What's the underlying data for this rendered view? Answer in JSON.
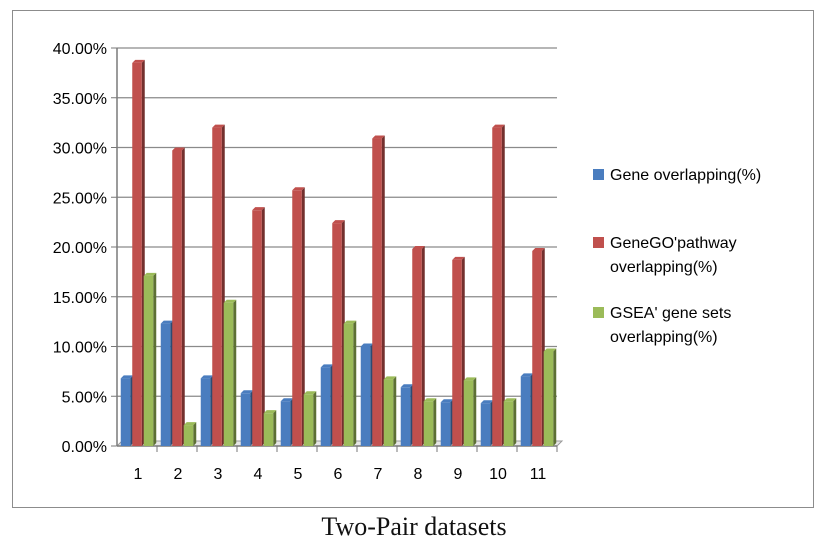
{
  "chart_data": {
    "type": "bar",
    "title": "",
    "xlabel": "Two-Pair datasets",
    "ylabel": "",
    "ylim": [
      0,
      40
    ],
    "yticks": [
      "0.00%",
      "5.00%",
      "10.00%",
      "15.00%",
      "20.00%",
      "25.00%",
      "30.00%",
      "35.00%",
      "40.00%"
    ],
    "categories": [
      "1",
      "2",
      "3",
      "4",
      "5",
      "6",
      "7",
      "8",
      "9",
      "10",
      "11"
    ],
    "series": [
      {
        "name": "Gene overlapping(%)",
        "color": "#4a7dbf",
        "values": [
          6.8,
          12.3,
          6.8,
          5.3,
          4.5,
          7.9,
          10.0,
          5.9,
          4.4,
          4.3,
          7.0
        ]
      },
      {
        "name": "GeneGO'pathway overlapping(%)",
        "color": "#c0504d",
        "values": [
          38.5,
          29.7,
          32.0,
          23.7,
          25.7,
          22.4,
          30.9,
          19.8,
          18.7,
          32.0,
          19.6
        ]
      },
      {
        "name": "GSEA' gene sets overlapping(%)",
        "color": "#9bbb59",
        "values": [
          17.1,
          2.1,
          14.4,
          3.3,
          5.2,
          12.3,
          6.7,
          4.5,
          6.6,
          4.5,
          9.5
        ]
      }
    ],
    "legend_lines": [
      [
        "Gene overlapping(%)"
      ],
      [
        "GeneGO'pathway",
        "overlapping(%)"
      ],
      [
        "GSEA' gene sets",
        "overlapping(%)"
      ]
    ],
    "grid": true,
    "legend_position": "right"
  }
}
